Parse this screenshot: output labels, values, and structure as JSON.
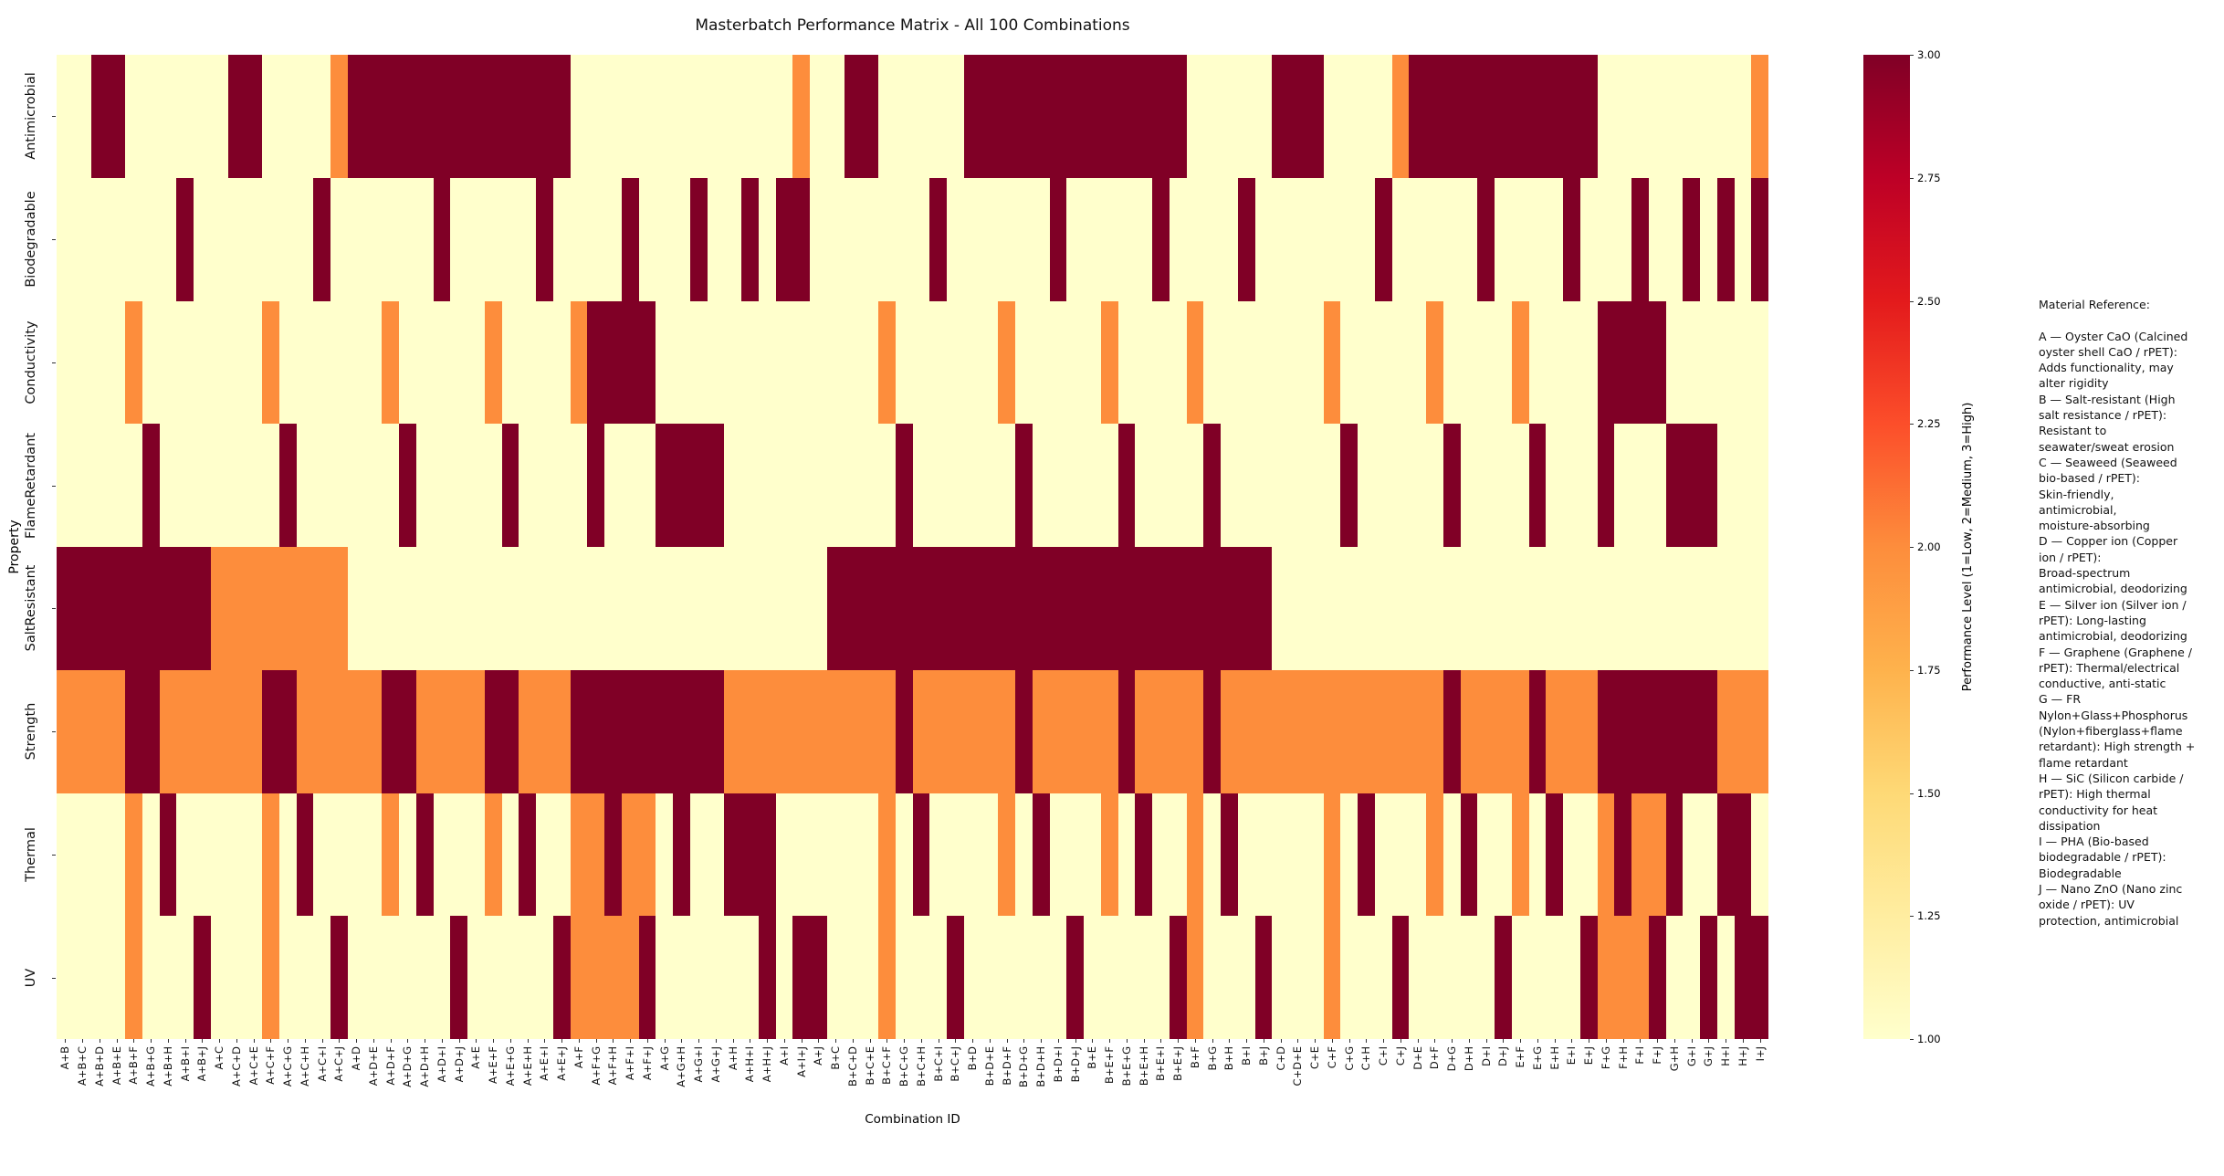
{
  "figure": {
    "title": "Masterbatch Performance Matrix - All 100 Combinations",
    "x_axis_title": "Combination ID",
    "y_axis_title": "Property"
  },
  "chart_data": {
    "type": "heatmap",
    "title": "Masterbatch Performance Matrix - All 100 Combinations",
    "xlabel": "Combination ID",
    "ylabel": "Property",
    "legend_position": "right-colorbar",
    "grid": false,
    "rows": [
      "Antimicrobial",
      "Biodegradable",
      "Conductivity",
      "FlameRetardant",
      "SaltResistant",
      "Strength",
      "Thermal",
      "UV"
    ],
    "columns": [
      "A+B",
      "A+B+C",
      "A+B+D",
      "A+B+E",
      "A+B+F",
      "A+B+G",
      "A+B+H",
      "A+B+I",
      "A+B+J",
      "A+C",
      "A+C+D",
      "A+C+E",
      "A+C+F",
      "A+C+G",
      "A+C+H",
      "A+C+I",
      "A+C+J",
      "A+D",
      "A+D+E",
      "A+D+F",
      "A+D+G",
      "A+D+H",
      "A+D+I",
      "A+D+J",
      "A+E",
      "A+E+F",
      "A+E+G",
      "A+E+H",
      "A+E+I",
      "A+E+J",
      "A+F",
      "A+F+G",
      "A+F+H",
      "A+F+I",
      "A+F+J",
      "A+G",
      "A+G+H",
      "A+G+I",
      "A+G+J",
      "A+H",
      "A+H+I",
      "A+H+J",
      "A+I",
      "A+I+J",
      "A+J",
      "B+C",
      "B+C+D",
      "B+C+E",
      "B+C+F",
      "B+C+G",
      "B+C+H",
      "B+C+I",
      "B+C+J",
      "B+D",
      "B+D+E",
      "B+D+F",
      "B+D+G",
      "B+D+H",
      "B+D+I",
      "B+D+J",
      "B+E",
      "B+E+F",
      "B+E+G",
      "B+E+H",
      "B+E+I",
      "B+E+J",
      "B+F",
      "B+G",
      "B+H",
      "B+I",
      "B+J",
      "C+D",
      "C+D+E",
      "C+E",
      "C+F",
      "C+G",
      "C+H",
      "C+I",
      "C+J",
      "D+E",
      "D+F",
      "D+G",
      "D+H",
      "D+I",
      "D+J",
      "E+F",
      "E+G",
      "E+H",
      "E+I",
      "E+J",
      "F+G",
      "F+H",
      "F+I",
      "F+J",
      "G+H",
      "G+I",
      "G+J",
      "H+I",
      "H+J",
      "I+J"
    ],
    "values": [
      [
        1,
        1,
        3,
        3,
        1,
        1,
        1,
        1,
        1,
        1,
        3,
        3,
        1,
        1,
        1,
        1,
        2,
        3,
        3,
        3,
        3,
        3,
        3,
        3,
        3,
        3,
        3,
        3,
        3,
        3,
        1,
        1,
        1,
        1,
        1,
        1,
        1,
        1,
        1,
        1,
        1,
        1,
        1,
        2,
        1,
        1,
        3,
        3,
        1,
        1,
        1,
        1,
        1,
        3,
        3,
        3,
        3,
        3,
        3,
        3,
        3,
        3,
        3,
        3,
        3,
        3,
        1,
        1,
        1,
        1,
        1,
        3,
        3,
        3,
        1,
        1,
        1,
        1,
        2,
        3,
        3,
        3,
        3,
        3,
        3,
        3,
        3,
        3,
        3,
        3,
        1,
        1,
        1,
        1,
        1,
        1,
        1,
        1,
        1,
        2
      ],
      [
        1,
        1,
        1,
        1,
        1,
        1,
        1,
        3,
        1,
        1,
        1,
        1,
        1,
        1,
        1,
        3,
        1,
        1,
        1,
        1,
        1,
        1,
        3,
        1,
        1,
        1,
        1,
        1,
        3,
        1,
        1,
        1,
        1,
        3,
        1,
        1,
        1,
        3,
        1,
        1,
        3,
        1,
        3,
        3,
        1,
        1,
        1,
        1,
        1,
        1,
        1,
        3,
        1,
        1,
        1,
        1,
        1,
        1,
        3,
        1,
        1,
        1,
        1,
        1,
        3,
        1,
        1,
        1,
        1,
        3,
        1,
        1,
        1,
        1,
        1,
        1,
        1,
        3,
        1,
        1,
        1,
        1,
        1,
        3,
        1,
        1,
        1,
        1,
        3,
        1,
        1,
        1,
        3,
        1,
        1,
        3,
        1,
        3,
        1,
        3
      ],
      [
        1,
        1,
        1,
        1,
        2,
        1,
        1,
        1,
        1,
        1,
        1,
        1,
        2,
        1,
        1,
        1,
        1,
        1,
        1,
        2,
        1,
        1,
        1,
        1,
        1,
        2,
        1,
        1,
        1,
        1,
        2,
        3,
        3,
        3,
        3,
        1,
        1,
        1,
        1,
        1,
        1,
        1,
        1,
        1,
        1,
        1,
        1,
        1,
        2,
        1,
        1,
        1,
        1,
        1,
        1,
        2,
        1,
        1,
        1,
        1,
        1,
        2,
        1,
        1,
        1,
        1,
        2,
        1,
        1,
        1,
        1,
        1,
        1,
        1,
        2,
        1,
        1,
        1,
        1,
        1,
        2,
        1,
        1,
        1,
        1,
        2,
        1,
        1,
        1,
        1,
        3,
        3,
        3,
        3,
        1,
        1,
        1,
        1,
        1,
        1
      ],
      [
        1,
        1,
        1,
        1,
        1,
        3,
        1,
        1,
        1,
        1,
        1,
        1,
        1,
        3,
        1,
        1,
        1,
        1,
        1,
        1,
        3,
        1,
        1,
        1,
        1,
        1,
        3,
        1,
        1,
        1,
        1,
        3,
        1,
        1,
        1,
        3,
        3,
        3,
        3,
        1,
        1,
        1,
        1,
        1,
        1,
        1,
        1,
        1,
        1,
        3,
        1,
        1,
        1,
        1,
        1,
        1,
        3,
        1,
        1,
        1,
        1,
        1,
        3,
        1,
        1,
        1,
        1,
        3,
        1,
        1,
        1,
        1,
        1,
        1,
        1,
        3,
        1,
        1,
        1,
        1,
        1,
        3,
        1,
        1,
        1,
        1,
        3,
        1,
        1,
        1,
        3,
        1,
        1,
        1,
        3,
        3,
        3,
        1,
        1,
        1
      ],
      [
        3,
        3,
        3,
        3,
        3,
        3,
        3,
        3,
        3,
        2,
        2,
        2,
        2,
        2,
        2,
        2,
        2,
        1,
        1,
        1,
        1,
        1,
        1,
        1,
        1,
        1,
        1,
        1,
        1,
        1,
        1,
        1,
        1,
        1,
        1,
        1,
        1,
        1,
        1,
        1,
        1,
        1,
        1,
        1,
        1,
        3,
        3,
        3,
        3,
        3,
        3,
        3,
        3,
        3,
        3,
        3,
        3,
        3,
        3,
        3,
        3,
        3,
        3,
        3,
        3,
        3,
        3,
        3,
        3,
        3,
        3,
        1,
        1,
        1,
        1,
        1,
        1,
        1,
        1,
        1,
        1,
        1,
        1,
        1,
        1,
        1,
        1,
        1,
        1,
        1,
        1,
        1,
        1,
        1,
        1,
        1,
        1,
        1,
        1,
        1
      ],
      [
        2,
        2,
        2,
        2,
        3,
        3,
        2,
        2,
        2,
        2,
        2,
        2,
        3,
        3,
        2,
        2,
        2,
        2,
        2,
        3,
        3,
        2,
        2,
        2,
        2,
        3,
        3,
        2,
        2,
        2,
        3,
        3,
        3,
        3,
        3,
        3,
        3,
        3,
        3,
        2,
        2,
        2,
        2,
        2,
        2,
        2,
        2,
        2,
        2,
        3,
        2,
        2,
        2,
        2,
        2,
        2,
        3,
        2,
        2,
        2,
        2,
        2,
        3,
        2,
        2,
        2,
        2,
        3,
        2,
        2,
        2,
        2,
        2,
        2,
        2,
        2,
        2,
        2,
        2,
        2,
        2,
        3,
        2,
        2,
        2,
        2,
        3,
        2,
        2,
        2,
        3,
        3,
        3,
        3,
        3,
        3,
        3,
        2,
        2,
        2
      ],
      [
        1,
        1,
        1,
        1,
        2,
        1,
        3,
        1,
        1,
        1,
        1,
        1,
        2,
        1,
        3,
        1,
        1,
        1,
        1,
        2,
        1,
        3,
        1,
        1,
        1,
        2,
        1,
        3,
        1,
        1,
        2,
        2,
        3,
        2,
        2,
        1,
        3,
        1,
        1,
        3,
        3,
        3,
        1,
        1,
        1,
        1,
        1,
        1,
        2,
        1,
        3,
        1,
        1,
        1,
        1,
        2,
        1,
        3,
        1,
        1,
        1,
        2,
        1,
        3,
        1,
        1,
        2,
        1,
        3,
        1,
        1,
        1,
        1,
        1,
        2,
        1,
        3,
        1,
        1,
        1,
        2,
        1,
        3,
        1,
        1,
        2,
        1,
        3,
        1,
        1,
        2,
        3,
        2,
        2,
        3,
        1,
        1,
        3,
        3,
        1
      ],
      [
        1,
        1,
        1,
        1,
        2,
        1,
        1,
        1,
        3,
        1,
        1,
        1,
        2,
        1,
        1,
        1,
        3,
        1,
        1,
        1,
        1,
        1,
        1,
        3,
        1,
        1,
        1,
        1,
        1,
        3,
        2,
        2,
        2,
        2,
        3,
        1,
        1,
        1,
        1,
        1,
        1,
        3,
        1,
        3,
        3,
        1,
        1,
        1,
        2,
        1,
        1,
        1,
        3,
        1,
        1,
        1,
        1,
        1,
        1,
        3,
        1,
        1,
        1,
        1,
        1,
        3,
        2,
        1,
        1,
        1,
        3,
        1,
        1,
        1,
        2,
        1,
        1,
        1,
        3,
        1,
        1,
        1,
        1,
        1,
        3,
        1,
        1,
        1,
        1,
        3,
        2,
        2,
        2,
        3,
        1,
        1,
        3,
        1,
        3,
        3
      ]
    ],
    "value_scale": {
      "1": "Low",
      "2": "Medium",
      "3": "High"
    },
    "cell_colors": {
      "1": "#ffffcc",
      "2": "#fd8d3c",
      "3": "#800026"
    },
    "colorbar": {
      "label": "Performance Level (1=Low, 2=Medium, 3=High)",
      "min": 1,
      "max": 3,
      "ticks": [
        "1.00",
        "1.25",
        "1.50",
        "1.75",
        "2.00",
        "2.25",
        "2.50",
        "2.75",
        "3.00"
      ],
      "gradient": [
        "#ffffcc",
        "#ffeda0",
        "#fed976",
        "#feb24c",
        "#fd8d3c",
        "#fc4e2a",
        "#e31a1c",
        "#bd0026",
        "#800026"
      ]
    }
  },
  "reference_panel": {
    "lines": [
      "Material Reference:",
      "",
      "A — Oyster CaO (Calcined",
      "oyster shell CaO / rPET):",
      "Adds functionality, may",
      "alter rigidity",
      "B — Salt-resistant (High",
      "salt resistance / rPET):",
      "Resistant to",
      "seawater/sweat erosion",
      "C — Seaweed (Seaweed",
      "bio-based / rPET):",
      "Skin-friendly,",
      "antimicrobial,",
      "moisture-absorbing",
      "D — Copper ion (Copper",
      "ion / rPET):",
      "Broad-spectrum",
      "antimicrobial, deodorizing",
      "E — Silver ion (Silver ion /",
      "rPET): Long-lasting",
      "antimicrobial, deodorizing",
      "F — Graphene (Graphene /",
      "rPET): Thermal/electrical",
      "conductive, anti-static",
      "G — FR",
      "Nylon+Glass+Phosphorus",
      "(Nylon+fiberglass+flame",
      "retardant): High strength +",
      "flame retardant",
      "H — SiC (Silicon carbide /",
      "rPET): High thermal",
      "conductivity for heat",
      "dissipation",
      "I — PHA (Bio-based",
      "biodegradable / rPET):",
      "Biodegradable",
      "J — Nano ZnO (Nano zinc",
      "oxide / rPET): UV",
      "protection, antimicrobial"
    ]
  }
}
